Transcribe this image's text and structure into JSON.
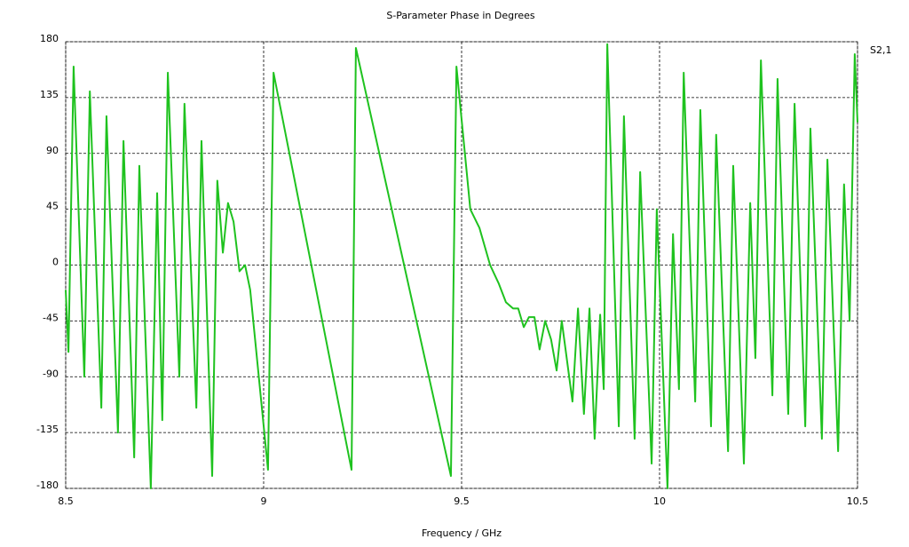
{
  "chart_data": {
    "type": "line",
    "title": "S-Parameter Phase in Degrees",
    "x_label": "Frequency / GHz",
    "x": [
      8.5,
      8.507,
      8.52,
      8.547,
      8.561,
      8.59,
      8.603,
      8.632,
      8.646,
      8.673,
      8.686,
      8.715,
      8.731,
      8.744,
      8.758,
      8.787,
      8.8,
      8.83,
      8.843,
      8.87,
      8.883,
      8.897,
      8.91,
      8.924,
      8.939,
      8.953,
      8.966,
      9.011,
      9.025,
      9.222,
      9.233,
      9.473,
      9.487,
      9.522,
      9.545,
      9.572,
      9.594,
      9.612,
      9.63,
      9.643,
      9.657,
      9.67,
      9.684,
      9.697,
      9.711,
      9.726,
      9.74,
      9.753,
      9.78,
      9.794,
      9.809,
      9.823,
      9.836,
      9.85,
      9.859,
      9.868,
      9.897,
      9.91,
      9.937,
      9.951,
      9.98,
      9.993,
      10.02,
      10.034,
      10.049,
      10.061,
      10.09,
      10.103,
      10.13,
      10.143,
      10.173,
      10.186,
      10.213,
      10.229,
      10.242,
      10.256,
      10.285,
      10.298,
      10.325,
      10.341,
      10.368,
      10.381,
      10.41,
      10.424,
      10.451,
      10.466,
      10.48,
      10.493,
      10.5
    ],
    "series": [
      {
        "name": "S2,1",
        "color": "#1fc21f",
        "values": [
          -20,
          -70,
          160,
          -90,
          140,
          -115,
          120,
          -135,
          100,
          -155,
          80,
          -180,
          58,
          -125,
          155,
          -90,
          130,
          -115,
          100,
          -170,
          68,
          10,
          50,
          35,
          -5,
          0,
          -20,
          -165,
          155,
          -165,
          175,
          -170,
          160,
          45,
          30,
          0,
          -15,
          -30,
          -35,
          -35,
          -50,
          -42,
          -42,
          -68,
          -45,
          -60,
          -85,
          -45,
          -110,
          -35,
          -120,
          -35,
          -140,
          -40,
          -100,
          178,
          -130,
          120,
          -140,
          75,
          -160,
          45,
          -180,
          25,
          -100,
          155,
          -110,
          125,
          -130,
          105,
          -150,
          80,
          -160,
          50,
          -75,
          165,
          -105,
          150,
          -120,
          130,
          -130,
          110,
          -140,
          85,
          -150,
          65,
          -45,
          170,
          115
        ]
      }
    ],
    "xlim": [
      8.5,
      10.5
    ],
    "xticks": [
      8.5,
      9,
      9.5,
      10,
      10.5
    ],
    "ylim": [
      -180,
      180
    ],
    "yticks": [
      -180,
      -135,
      -90,
      -45,
      0,
      45,
      90,
      135,
      180
    ],
    "grid": true,
    "legend": "right"
  }
}
